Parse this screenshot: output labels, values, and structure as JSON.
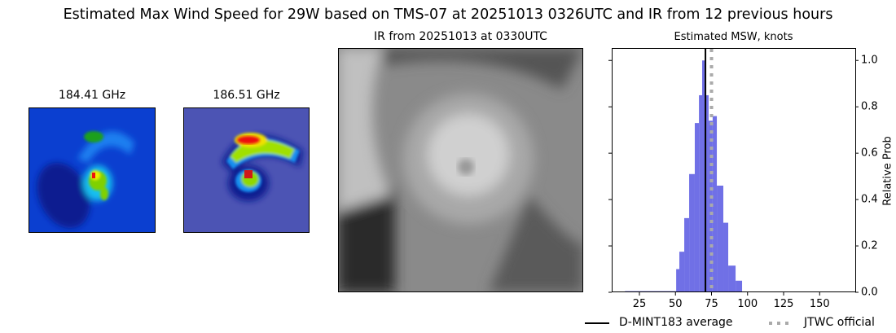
{
  "suptitle": "Estimated Max Wind Speed for 29W based on TMS-07 at 20251013 0326UTC and IR from 12 previous hours",
  "panels": {
    "mw1_title": "184.41 GHz",
    "mw2_title": "186.51 GHz",
    "ir_title": "IR from 20251013 at 0330UTC"
  },
  "chart_data": {
    "type": "bar",
    "title": "Estimated MSW, knots",
    "xlabel": "",
    "ylabel": "Relative Prob",
    "xlim": [
      5.8,
      174.7
    ],
    "ylim": [
      0,
      1.05
    ],
    "xticks": [
      25,
      50,
      75,
      100,
      125,
      150
    ],
    "yticks": [
      "0.0",
      "0.2",
      "0.4",
      "0.6",
      "0.8",
      "1.0"
    ],
    "bar_color": "#7070e6",
    "bins": [
      {
        "x0": 15,
        "x1": 50.5,
        "value": 0.005
      },
      {
        "x0": 50.5,
        "x1": 52.7,
        "value": 0.1
      },
      {
        "x0": 52.7,
        "x1": 56.1,
        "value": 0.175
      },
      {
        "x0": 56.1,
        "x1": 59.5,
        "value": 0.32
      },
      {
        "x0": 59.5,
        "x1": 63.4,
        "value": 0.51
      },
      {
        "x0": 63.4,
        "x1": 66.3,
        "value": 0.73
      },
      {
        "x0": 66.3,
        "x1": 68.5,
        "value": 0.85
      },
      {
        "x0": 68.5,
        "x1": 70.2,
        "value": 1.0
      },
      {
        "x0": 70.2,
        "x1": 73.0,
        "value": 0.85
      },
      {
        "x0": 73.0,
        "x1": 75.8,
        "value": 0.74
      },
      {
        "x0": 75.8,
        "x1": 78.7,
        "value": 0.76
      },
      {
        "x0": 78.7,
        "x1": 83.2,
        "value": 0.46
      },
      {
        "x0": 83.2,
        "x1": 86.6,
        "value": 0.3
      },
      {
        "x0": 86.6,
        "x1": 91.7,
        "value": 0.115
      },
      {
        "x0": 91.7,
        "x1": 96.2,
        "value": 0.05
      },
      {
        "x0": 96.2,
        "x1": 169.3,
        "value": 0.003
      }
    ],
    "mean_line": {
      "value": 70.8,
      "label": "D-MINT183 average",
      "color": "#000000"
    },
    "official_line": {
      "value": 75,
      "label": "JTWC official",
      "color": "#aaaaaa"
    },
    "legend_placement": "bottom-right"
  }
}
